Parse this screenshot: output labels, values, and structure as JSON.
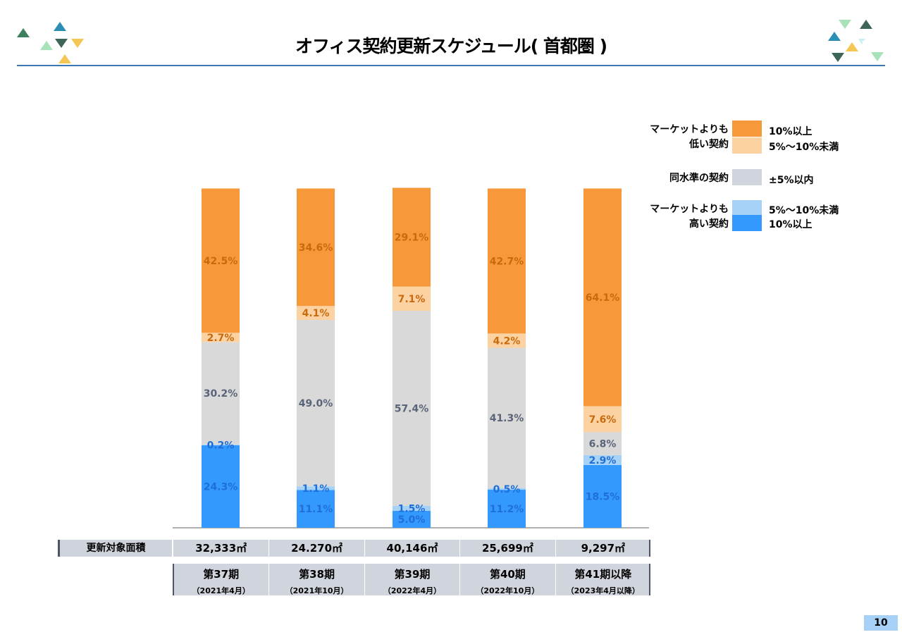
{
  "header": {
    "title": "オフィス契約更新スケジュール( 首都圏 )"
  },
  "colors": {
    "lower_10_plus": "#f7993a",
    "lower_5_10": "#fcd2a3",
    "same_level": "#d9d9d9",
    "higher_5_10": "#a6d2f7",
    "higher_10_plus": "#3399ff",
    "label_orange": "#c96a0c",
    "label_gray": "#5a6478",
    "label_blue": "#1f6fd6",
    "rule": "#3b78b5"
  },
  "legend": {
    "lower_group": [
      "マーケットよりも",
      "低い契約"
    ],
    "lower_10_plus": "10%以上",
    "lower_5_10": "5%～10%未満",
    "same_group": "同水準の契約",
    "same_level": "±5%以内",
    "higher_group": [
      "マーケットよりも",
      "高い契約"
    ],
    "higher_5_10": "5%～10%未満",
    "higher_10_plus": "10%以上"
  },
  "table": {
    "area_header": "更新対象面積",
    "areas": [
      "32,333㎡",
      "24.270㎡",
      "40,146㎡",
      "25,699㎡",
      "9,297㎡"
    ],
    "periods": [
      {
        "main": "第37期",
        "sub": "（2021年4月）"
      },
      {
        "main": "第38期",
        "sub": "（2021年10月）"
      },
      {
        "main": "第39期",
        "sub": "（2022年4月）"
      },
      {
        "main": "第40期",
        "sub": "（2022年10月）"
      },
      {
        "main": "第41期以降",
        "sub": "（2023年4月以降）"
      }
    ]
  },
  "chart_data": {
    "type": "bar",
    "stacked": true,
    "categories": [
      "第37期",
      "第38期",
      "第39期",
      "第40期",
      "第41期以降"
    ],
    "series": [
      {
        "name": "マーケットよりも高い契約 10%以上",
        "values": [
          24.3,
          11.1,
          5.0,
          11.2,
          18.5
        ],
        "labels": [
          "24.3%",
          "11.1%",
          "5.0%",
          "11.2%",
          "18.5%"
        ]
      },
      {
        "name": "マーケットよりも高い契約 5%～10%未満",
        "values": [
          0.2,
          1.1,
          1.5,
          0.5,
          2.9
        ],
        "labels": [
          "0.2%",
          "1.1%",
          "1.5%",
          "0.5%",
          "2.9%"
        ]
      },
      {
        "name": "同水準の契約 ±5%以内",
        "values": [
          30.2,
          49.0,
          57.4,
          41.3,
          6.8
        ],
        "labels": [
          "30.2%",
          "49.0%",
          "57.4%",
          "41.3%",
          "6.8%"
        ]
      },
      {
        "name": "マーケットよりも低い契約 5%～10%未満",
        "values": [
          2.7,
          4.1,
          7.1,
          4.2,
          7.6
        ],
        "labels": [
          "2.7%",
          "4.1%",
          "7.1%",
          "4.2%",
          "7.6%"
        ]
      },
      {
        "name": "マーケットよりも低い契約 10%以上",
        "values": [
          42.5,
          34.6,
          29.1,
          42.7,
          64.1
        ],
        "labels": [
          "42.5%",
          "34.6%",
          "29.1%",
          "42.7%",
          "64.1%"
        ]
      }
    ],
    "ylim": [
      0,
      100
    ],
    "grid": false,
    "legend_position": "top-right"
  },
  "footer": {
    "page_number": "10"
  }
}
